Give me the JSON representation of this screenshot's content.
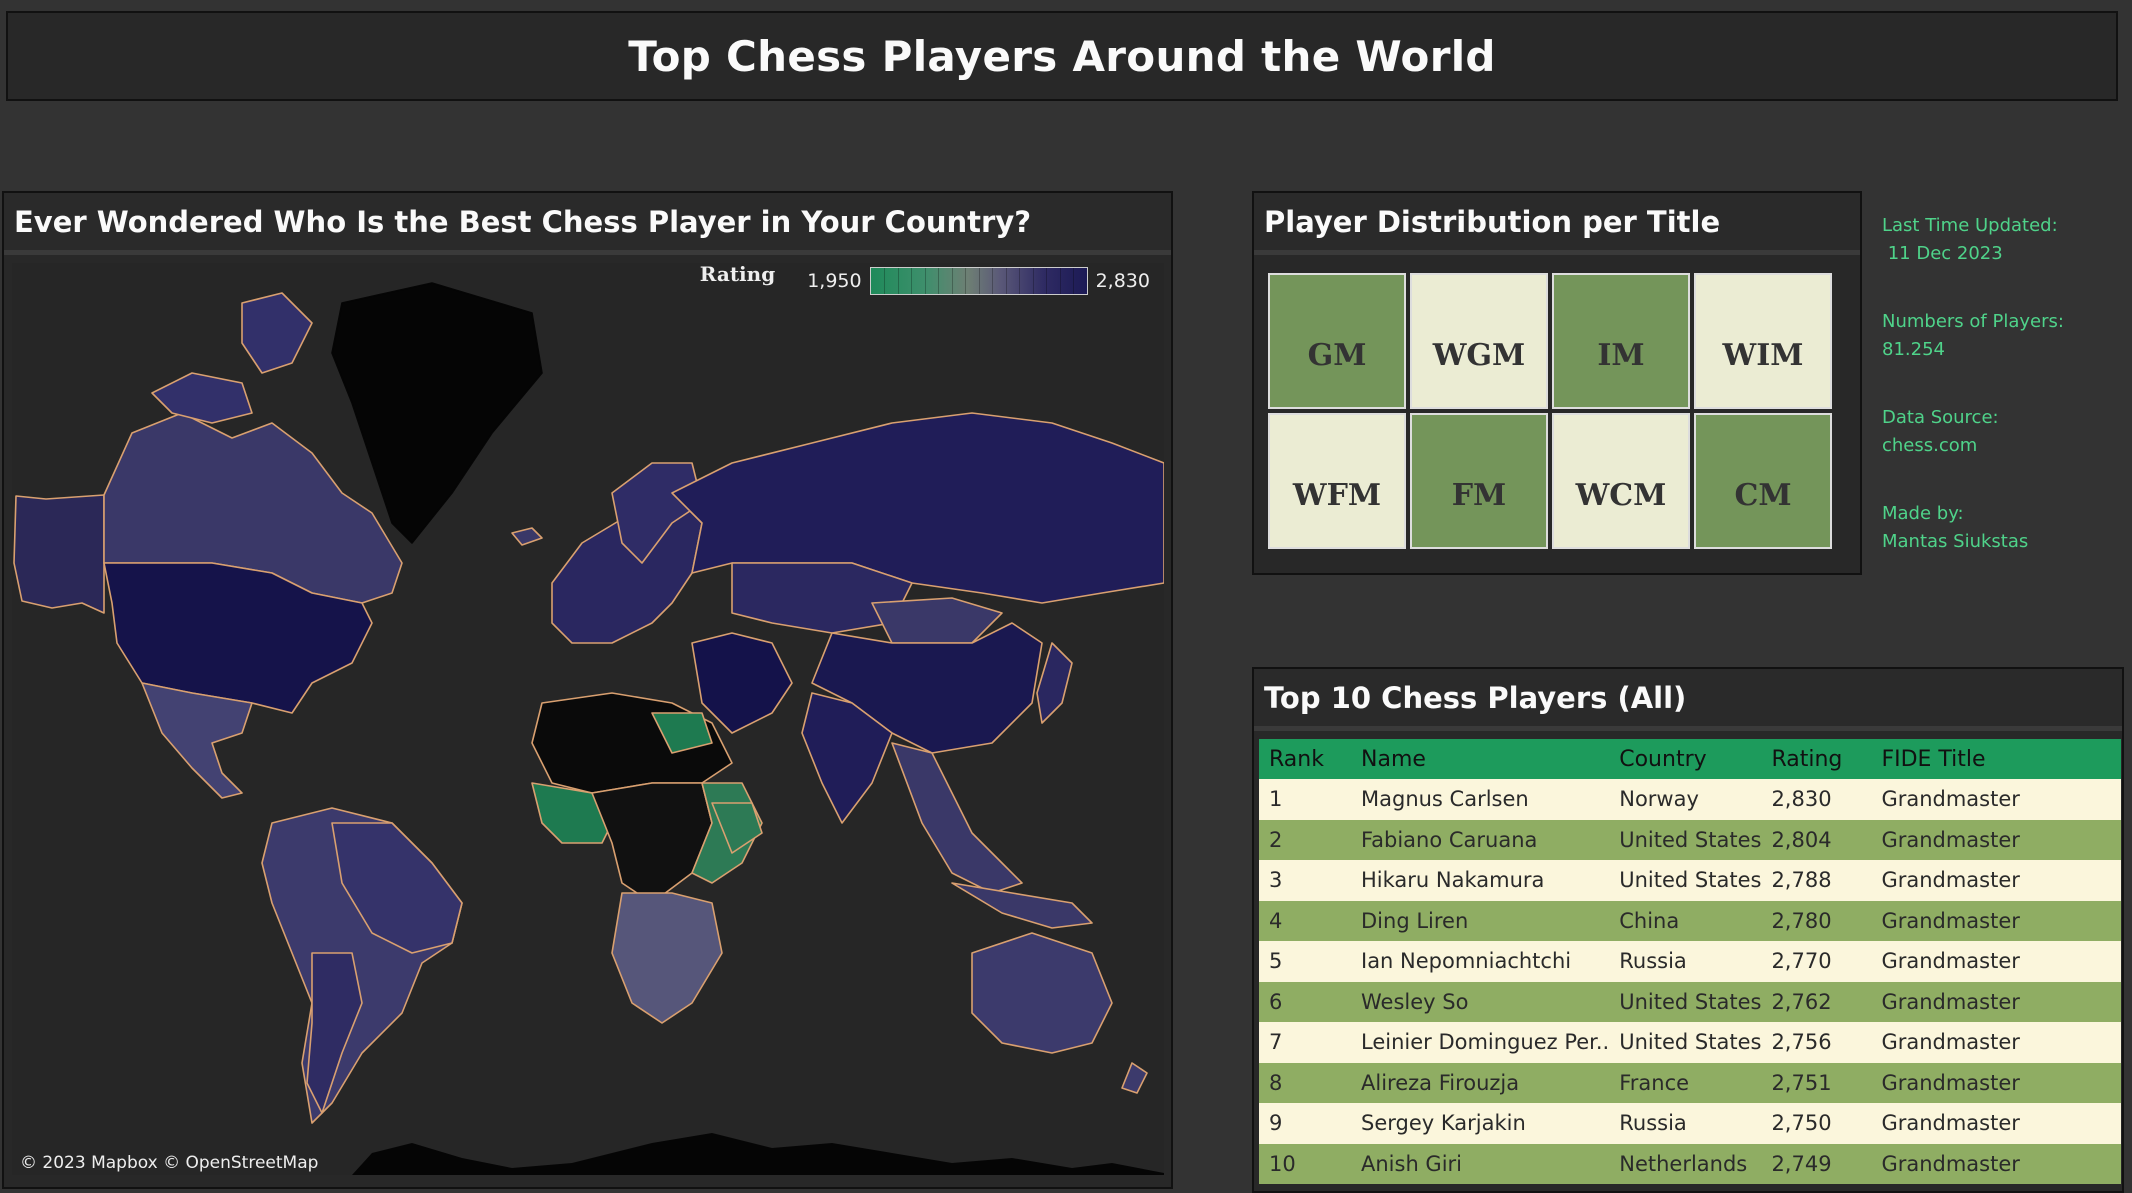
{
  "header": {
    "title": "Top Chess Players Around the World"
  },
  "map_panel": {
    "title": "Ever Wondered Who Is the Best Chess Player in Your Country?",
    "legend": {
      "title": "Rating",
      "min": "1,950",
      "max": "2,830"
    },
    "credit": "© 2023 Mapbox  © OpenStreetMap"
  },
  "dist_panel": {
    "title": "Player Distribution per Title",
    "tiles": [
      {
        "label": "GM",
        "style": "dark"
      },
      {
        "label": "WGM",
        "style": "light"
      },
      {
        "label": "IM",
        "style": "dark"
      },
      {
        "label": "WIM",
        "style": "light"
      },
      {
        "label": "WFM",
        "style": "light"
      },
      {
        "label": "FM",
        "style": "dark"
      },
      {
        "label": "WCM",
        "style": "light"
      },
      {
        "label": "CM",
        "style": "dark"
      }
    ]
  },
  "info": {
    "updated_label": "Last Time Updated:",
    "updated_value": " 11 Dec 2023",
    "players_label": "Numbers of Players:",
    "players_value": "81.254",
    "source_label": "Data Source:",
    "source_value": "chess.com",
    "author_label": "Made by:",
    "author_value": "Mantas Siukstas"
  },
  "top_panel": {
    "title": "Top 10 Chess Players (All)",
    "columns": [
      "Rank",
      "Name",
      "Country",
      "Rating",
      "FIDE Title"
    ],
    "rows": [
      [
        "1",
        "Magnus Carlsen",
        "Norway",
        "2,830",
        "Grandmaster"
      ],
      [
        "2",
        "Fabiano Caruana",
        "United States",
        "2,804",
        "Grandmaster"
      ],
      [
        "3",
        "Hikaru Nakamura",
        "United States",
        "2,788",
        "Grandmaster"
      ],
      [
        "4",
        "Ding Liren",
        "China",
        "2,780",
        "Grandmaster"
      ],
      [
        "5",
        "Ian Nepomniachtchi",
        "Russia",
        "2,770",
        "Grandmaster"
      ],
      [
        "6",
        "Wesley So",
        "United States",
        "2,762",
        "Grandmaster"
      ],
      [
        "7",
        "Leinier Dominguez Per..",
        "United States",
        "2,756",
        "Grandmaster"
      ],
      [
        "8",
        "Alireza Firouzja",
        "France",
        "2,751",
        "Grandmaster"
      ],
      [
        "9",
        "Sergey Karjakin",
        "Russia",
        "2,750",
        "Grandmaster"
      ],
      [
        "10",
        "Anish Giri",
        "Netherlands",
        "2,749",
        "Grandmaster"
      ]
    ]
  },
  "colors": {
    "accent_green": "#4fd38a",
    "header_green": "#1d9b5c",
    "tile_dark": "#74955a",
    "tile_light": "#ebecd3",
    "row_light": "#fbf6dc",
    "row_green": "#8fad63",
    "map_navy": "#27244f",
    "map_green": "#1e7a50",
    "country_border": "#d9a070"
  }
}
